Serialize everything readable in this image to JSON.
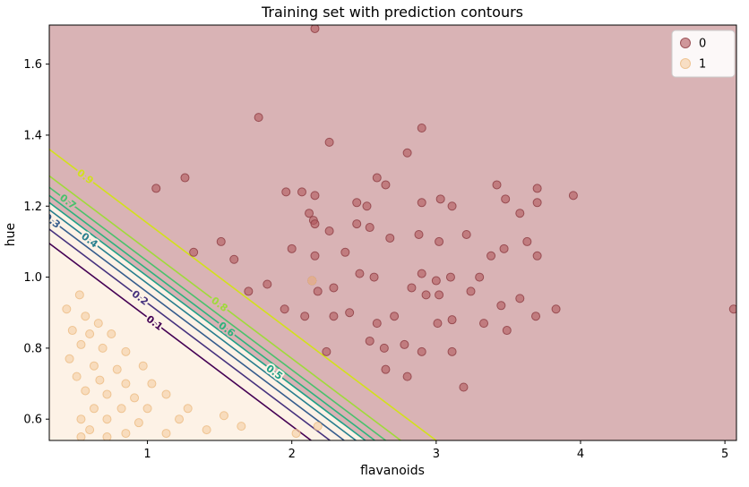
{
  "chart_data": {
    "type": "scatter",
    "title": "Training set with prediction contours",
    "xlabel": "flavanoids",
    "ylabel": "hue",
    "xlim": [
      0.32,
      5.08
    ],
    "ylim": [
      0.54,
      1.71
    ],
    "xticks": [
      "1",
      "2",
      "3",
      "4",
      "5"
    ],
    "xtick_values": [
      1,
      2,
      3,
      4,
      5
    ],
    "yticks": [
      "0.6",
      "0.8",
      "1.0",
      "1.2",
      "1.4",
      "1.6"
    ],
    "ytick_values": [
      0.6,
      0.8,
      1.0,
      1.2,
      1.4,
      1.6
    ],
    "grid": false,
    "legend_position": "upper right",
    "regions": {
      "class0_fill": "#d9b3b5",
      "class1_fill": "#fdf2e6",
      "boundary_level": 0.5
    },
    "contours": {
      "slope": -0.306,
      "note": "probability contour lines, straight and parallel; intercept = hue value where line crosses x = xlim min",
      "levels": [
        {
          "label": "0.1",
          "value": 0.1,
          "intercept": 1.095,
          "color": "#440154",
          "label_x": 1.05,
          "halo": "#fdf2e6"
        },
        {
          "label": "0.2",
          "value": 0.2,
          "intercept": 1.135,
          "color": "#46327e",
          "label_x": 0.95,
          "halo": "#fdf2e6"
        },
        {
          "label": "0.3",
          "value": 0.3,
          "intercept": 1.165,
          "color": "#365c8d",
          "label_x": 0.34,
          "halo": "#fdf2e6"
        },
        {
          "label": "0.4",
          "value": 0.4,
          "intercept": 1.19,
          "color": "#277f8e",
          "label_x": 0.6,
          "halo": "#fdf2e6"
        },
        {
          "label": "0.5",
          "value": 0.5,
          "intercept": 1.21,
          "color": "#1fa187",
          "label_x": 1.88,
          "halo": "#fdf2e6"
        },
        {
          "label": "0.6",
          "value": 0.6,
          "intercept": 1.23,
          "color": "#2db27d",
          "label_x": 1.55,
          "halo": "#d9b3b5"
        },
        {
          "label": "0.7",
          "value": 0.7,
          "intercept": 1.253,
          "color": "#4ac16d",
          "label_x": 0.45,
          "halo": "#d9b3b5"
        },
        {
          "label": "0.8",
          "value": 0.8,
          "intercept": 1.285,
          "color": "#9fda3a",
          "label_x": 1.5,
          "halo": "#d9b3b5"
        },
        {
          "label": "0.9",
          "value": 0.9,
          "intercept": 1.36,
          "color": "#d2e11b",
          "label_x": 0.57,
          "halo": "#d9b3b5"
        }
      ]
    },
    "series": [
      {
        "name": "0",
        "color": "#b0565c",
        "edge": "#8f3f45",
        "points": [
          [
            2.16,
            1.7
          ],
          [
            1.77,
            1.45
          ],
          [
            2.26,
            1.38
          ],
          [
            2.9,
            1.42
          ],
          [
            2.8,
            1.35
          ],
          [
            1.06,
            1.25
          ],
          [
            1.26,
            1.28
          ],
          [
            2.59,
            1.28
          ],
          [
            2.65,
            1.26
          ],
          [
            3.42,
            1.26
          ],
          [
            3.48,
            1.22
          ],
          [
            3.7,
            1.25
          ],
          [
            3.95,
            1.23
          ],
          [
            1.96,
            1.24
          ],
          [
            2.07,
            1.24
          ],
          [
            2.16,
            1.23
          ],
          [
            2.45,
            1.21
          ],
          [
            2.52,
            1.2
          ],
          [
            2.12,
            1.18
          ],
          [
            2.15,
            1.16
          ],
          [
            2.16,
            1.15
          ],
          [
            2.9,
            1.21
          ],
          [
            3.03,
            1.22
          ],
          [
            3.11,
            1.2
          ],
          [
            3.58,
            1.18
          ],
          [
            3.7,
            1.21
          ],
          [
            2.45,
            1.15
          ],
          [
            2.54,
            1.14
          ],
          [
            2.26,
            1.13
          ],
          [
            2.68,
            1.11
          ],
          [
            2.88,
            1.12
          ],
          [
            3.02,
            1.1
          ],
          [
            3.21,
            1.12
          ],
          [
            1.51,
            1.1
          ],
          [
            1.32,
            1.07
          ],
          [
            1.6,
            1.05
          ],
          [
            2.0,
            1.08
          ],
          [
            2.16,
            1.06
          ],
          [
            2.37,
            1.07
          ],
          [
            3.38,
            1.06
          ],
          [
            3.47,
            1.08
          ],
          [
            3.63,
            1.1
          ],
          [
            3.7,
            1.06
          ],
          [
            2.14,
            0.99
          ],
          [
            2.47,
            1.01
          ],
          [
            2.57,
            1.0
          ],
          [
            2.9,
            1.01
          ],
          [
            3.0,
            0.99
          ],
          [
            3.1,
            1.0
          ],
          [
            3.3,
            1.0
          ],
          [
            1.83,
            0.98
          ],
          [
            1.7,
            0.96
          ],
          [
            2.18,
            0.96
          ],
          [
            2.29,
            0.97
          ],
          [
            2.83,
            0.97
          ],
          [
            2.93,
            0.95
          ],
          [
            3.02,
            0.95
          ],
          [
            3.24,
            0.96
          ],
          [
            3.45,
            0.92
          ],
          [
            3.58,
            0.94
          ],
          [
            3.69,
            0.89
          ],
          [
            3.83,
            0.91
          ],
          [
            5.06,
            0.91
          ],
          [
            1.95,
            0.91
          ],
          [
            2.09,
            0.89
          ],
          [
            2.29,
            0.89
          ],
          [
            2.4,
            0.9
          ],
          [
            2.59,
            0.87
          ],
          [
            2.71,
            0.89
          ],
          [
            3.01,
            0.87
          ],
          [
            3.11,
            0.88
          ],
          [
            3.33,
            0.87
          ],
          [
            3.49,
            0.85
          ],
          [
            2.54,
            0.82
          ],
          [
            2.64,
            0.8
          ],
          [
            2.78,
            0.81
          ],
          [
            2.9,
            0.79
          ],
          [
            3.11,
            0.79
          ],
          [
            2.65,
            0.74
          ],
          [
            2.8,
            0.72
          ],
          [
            3.19,
            0.69
          ],
          [
            2.24,
            0.79
          ]
        ]
      },
      {
        "name": "1",
        "color": "#f5cda1",
        "edge": "#ecbd86",
        "points": [
          [
            2.14,
            0.99
          ],
          [
            0.53,
            0.95
          ],
          [
            0.44,
            0.91
          ],
          [
            0.57,
            0.89
          ],
          [
            0.66,
            0.87
          ],
          [
            0.48,
            0.85
          ],
          [
            0.6,
            0.84
          ],
          [
            0.75,
            0.84
          ],
          [
            0.54,
            0.81
          ],
          [
            0.69,
            0.8
          ],
          [
            0.85,
            0.79
          ],
          [
            0.46,
            0.77
          ],
          [
            0.63,
            0.75
          ],
          [
            0.79,
            0.74
          ],
          [
            0.97,
            0.75
          ],
          [
            0.51,
            0.72
          ],
          [
            0.67,
            0.71
          ],
          [
            0.85,
            0.7
          ],
          [
            1.03,
            0.7
          ],
          [
            0.57,
            0.68
          ],
          [
            0.72,
            0.67
          ],
          [
            0.91,
            0.66
          ],
          [
            1.13,
            0.67
          ],
          [
            0.63,
            0.63
          ],
          [
            0.82,
            0.63
          ],
          [
            1.0,
            0.63
          ],
          [
            1.28,
            0.63
          ],
          [
            0.54,
            0.6
          ],
          [
            0.72,
            0.6
          ],
          [
            0.94,
            0.59
          ],
          [
            1.22,
            0.6
          ],
          [
            1.53,
            0.61
          ],
          [
            0.6,
            0.57
          ],
          [
            0.85,
            0.56
          ],
          [
            1.13,
            0.56
          ],
          [
            1.41,
            0.57
          ],
          [
            1.65,
            0.58
          ],
          [
            2.03,
            0.56
          ],
          [
            2.18,
            0.58
          ],
          [
            0.54,
            0.55
          ],
          [
            0.72,
            0.55
          ]
        ]
      }
    ]
  }
}
